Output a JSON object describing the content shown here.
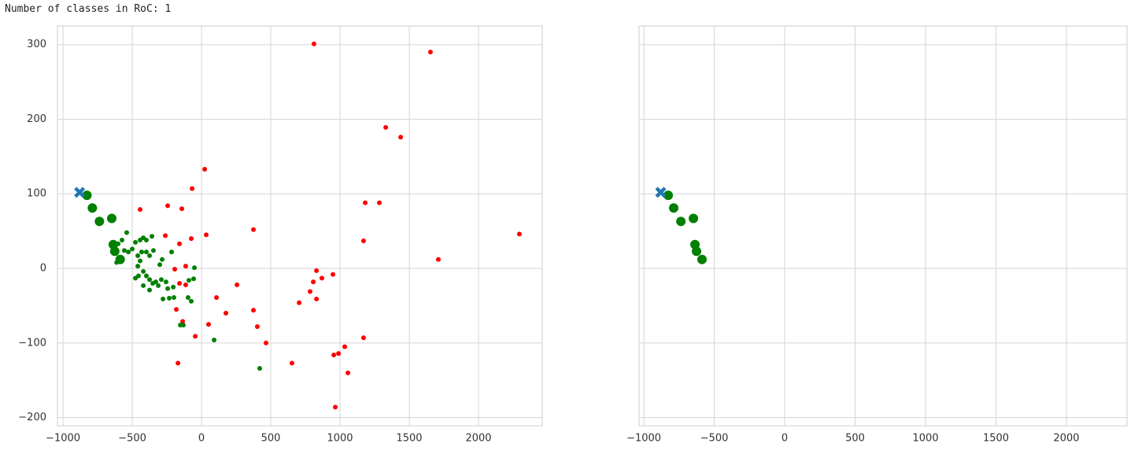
{
  "output_text": "Number of classes in RoC: 1",
  "chart_data": [
    {
      "type": "scatter",
      "xlim": [
        -1040,
        2460
      ],
      "ylim": [
        -211,
        325
      ],
      "xticks": [
        {
          "value": -1000,
          "label": "−1000"
        },
        {
          "value": -500,
          "label": "−500"
        },
        0,
        500,
        1000,
        1500,
        2000
      ],
      "yticks": [
        {
          "value": -200,
          "label": "−200"
        },
        {
          "value": -100,
          "label": "−100"
        },
        0,
        100,
        200,
        300
      ],
      "show_ytick_labels": true,
      "grid": true,
      "series": [
        {
          "color": "#ff0000",
          "marker": "circle",
          "marker_size": 3,
          "x": [
            812,
            1653,
            1330,
            1438,
            23,
            -68,
            -443,
            -244,
            -142,
            34,
            375,
            2295,
            1182,
            1284,
            1170,
            1710,
            -74,
            -261,
            -159,
            -114,
            -193,
            -159,
            -114,
            830,
            807,
            784,
            869,
            830,
            705,
            949,
            256,
            108,
            176,
            -182,
            -136,
            51,
            375,
            403,
            -45,
            466,
            1170,
            1034,
            989,
            955,
            653,
            1057,
            -170,
            966
          ],
          "y": [
            301,
            290,
            189,
            176,
            133,
            107,
            79,
            84,
            80,
            45,
            52,
            46,
            88,
            88,
            37,
            12,
            40,
            44,
            33,
            3,
            -1,
            -20,
            -22,
            -3,
            -18,
            -31,
            -13,
            -41,
            -46,
            -8,
            -22,
            -39,
            -60,
            -55,
            -71,
            -75,
            -56,
            -78,
            -91,
            -100,
            -93,
            -105,
            -114,
            -116,
            -127,
            -140,
            -127,
            -186
          ]
        },
        {
          "color": "#008000",
          "marker": "circle",
          "marker_size": 3,
          "x": [
            -540,
            -602,
            -574,
            -557,
            -528,
            -500,
            -477,
            -443,
            -420,
            -398,
            -358,
            -460,
            -432,
            -398,
            -347,
            -375,
            -443,
            -284,
            -216,
            -460,
            -420,
            -455,
            -398,
            -375,
            -352,
            -477,
            -420,
            -375,
            -330,
            -290,
            -256,
            -312,
            -244,
            -204,
            -278,
            -233,
            -199,
            -91,
            -57,
            -51,
            -97,
            -74,
            -153,
            -131,
            91,
            420,
            -630,
            -613,
            -301
          ],
          "y": [
            48,
            33,
            38,
            24,
            22,
            26,
            35,
            38,
            41,
            38,
            43,
            17,
            22,
            22,
            24,
            17,
            10,
            12,
            22,
            3,
            -4,
            -10,
            -10,
            -15,
            -20,
            -13,
            -23,
            -29,
            -18,
            -15,
            -18,
            -23,
            -27,
            -25,
            -41,
            -40,
            -39,
            -16,
            -14,
            1,
            -39,
            -44,
            -76,
            -76,
            -96,
            -134,
            22,
            8,
            5
          ]
        },
        {
          "color": "#008000",
          "marker": "circle",
          "marker_size": 6,
          "x": [
            -827,
            -788,
            -737,
            -648,
            -637,
            -626,
            -587
          ],
          "y": [
            98,
            81,
            63,
            67,
            32,
            23,
            12
          ]
        },
        {
          "color": "#1f77b4",
          "marker": "x",
          "marker_size": 7,
          "x": [
            -880
          ],
          "y": [
            102
          ]
        }
      ]
    },
    {
      "type": "scatter",
      "xlim": [
        -1034,
        2430
      ],
      "ylim": [
        -211,
        325
      ],
      "xticks": [
        {
          "value": -1000,
          "label": "−1000"
        },
        {
          "value": -500,
          "label": "−500"
        },
        0,
        500,
        1000,
        1500,
        2000
      ],
      "yticks": [
        -200,
        -100,
        0,
        100,
        200,
        300
      ],
      "show_ytick_labels": false,
      "grid": true,
      "series": [
        {
          "color": "#008000",
          "marker": "circle",
          "marker_size": 6,
          "x": [
            -827,
            -788,
            -737,
            -648,
            -637,
            -626,
            -587
          ],
          "y": [
            98,
            81,
            63,
            67,
            32,
            23,
            12
          ]
        },
        {
          "color": "#1f77b4",
          "marker": "x",
          "marker_size": 7,
          "x": [
            -880
          ],
          "y": [
            102
          ]
        }
      ]
    }
  ]
}
